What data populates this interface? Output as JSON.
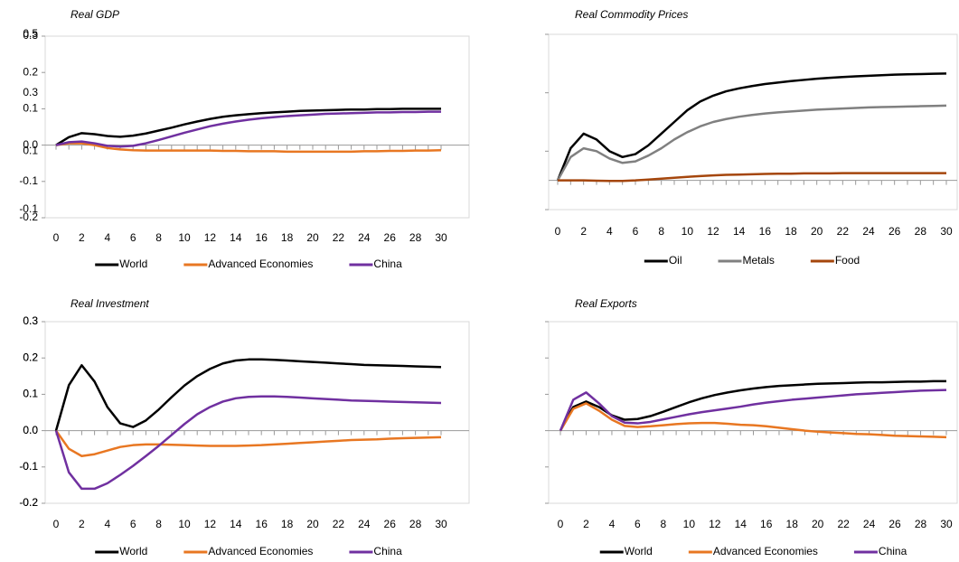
{
  "chart_data": [
    {
      "type": "line",
      "title": "Real GDP",
      "x": [
        0,
        1,
        2,
        3,
        4,
        5,
        6,
        7,
        8,
        9,
        10,
        11,
        12,
        13,
        14,
        15,
        16,
        17,
        18,
        19,
        20,
        21,
        22,
        23,
        24,
        25,
        26,
        27,
        28,
        29,
        30
      ],
      "xlim": [
        0,
        30
      ],
      "xticks": [
        0,
        2,
        4,
        6,
        8,
        10,
        12,
        14,
        16,
        18,
        20,
        22,
        24,
        26,
        28,
        30
      ],
      "ylim": [
        -0.2,
        0.3
      ],
      "yticks": [
        -0.2,
        -0.1,
        {
          "value": 0,
          "label": "0.0"
        },
        0.1,
        0.2,
        0.3
      ],
      "series": [
        {
          "name": "World",
          "color": "#000000",
          "values": [
            0,
            0.022,
            0.033,
            0.03,
            0.025,
            0.023,
            0.026,
            0.032,
            0.04,
            0.048,
            0.057,
            0.065,
            0.072,
            0.078,
            0.082,
            0.085,
            0.088,
            0.09,
            0.092,
            0.094,
            0.095,
            0.096,
            0.097,
            0.098,
            0.098,
            0.099,
            0.099,
            0.1,
            0.1,
            0.1,
            0.1
          ]
        },
        {
          "name": "Advanced Economies",
          "color": "#e87722",
          "values": [
            0,
            0.005,
            0.005,
            0,
            -0.008,
            -0.012,
            -0.014,
            -0.015,
            -0.015,
            -0.015,
            -0.015,
            -0.015,
            -0.015,
            -0.016,
            -0.016,
            -0.017,
            -0.017,
            -0.017,
            -0.018,
            -0.018,
            -0.018,
            -0.018,
            -0.018,
            -0.018,
            -0.017,
            -0.017,
            -0.016,
            -0.016,
            -0.015,
            -0.015,
            -0.014
          ]
        },
        {
          "name": "China",
          "color": "#7030a0",
          "values": [
            0,
            0.008,
            0.01,
            0.005,
            -0.002,
            -0.004,
            -0.002,
            0.005,
            0.014,
            0.024,
            0.034,
            0.043,
            0.052,
            0.059,
            0.065,
            0.07,
            0.074,
            0.077,
            0.08,
            0.082,
            0.084,
            0.086,
            0.087,
            0.088,
            0.089,
            0.09,
            0.09,
            0.091,
            0.091,
            0.092,
            0.092
          ]
        }
      ]
    },
    {
      "type": "line",
      "title": "Real Commodity Prices",
      "x": [
        0,
        1,
        2,
        3,
        4,
        5,
        6,
        7,
        8,
        9,
        10,
        11,
        12,
        13,
        14,
        15,
        16,
        17,
        18,
        19,
        20,
        21,
        22,
        23,
        24,
        25,
        26,
        27,
        28,
        29,
        30
      ],
      "xlim": [
        0,
        30
      ],
      "xticks": [
        0,
        2,
        4,
        6,
        8,
        10,
        12,
        14,
        16,
        18,
        20,
        22,
        24,
        26,
        28,
        30
      ],
      "ylim": [
        -0.1,
        0.5
      ],
      "yticks": [
        -0.1,
        0.1,
        0.3,
        0.5
      ],
      "series": [
        {
          "name": "Oil",
          "color": "#000000",
          "values": [
            0,
            0.11,
            0.16,
            0.14,
            0.1,
            0.08,
            0.09,
            0.12,
            0.16,
            0.2,
            0.24,
            0.27,
            0.29,
            0.305,
            0.315,
            0.323,
            0.33,
            0.335,
            0.34,
            0.344,
            0.348,
            0.351,
            0.354,
            0.356,
            0.358,
            0.36,
            0.362,
            0.363,
            0.364,
            0.365,
            0.366
          ]
        },
        {
          "name": "Metals",
          "color": "#808080",
          "values": [
            0,
            0.08,
            0.11,
            0.1,
            0.075,
            0.06,
            0.065,
            0.085,
            0.11,
            0.14,
            0.165,
            0.185,
            0.2,
            0.21,
            0.218,
            0.224,
            0.229,
            0.233,
            0.236,
            0.239,
            0.242,
            0.244,
            0.246,
            0.248,
            0.25,
            0.251,
            0.252,
            0.253,
            0.254,
            0.255,
            0.256
          ]
        },
        {
          "name": "Food",
          "color": "#a5460c",
          "values": [
            0,
            0,
            0,
            -0.001,
            -0.002,
            -0.002,
            0,
            0.003,
            0.006,
            0.009,
            0.012,
            0.015,
            0.017,
            0.019,
            0.02,
            0.021,
            0.022,
            0.023,
            0.023,
            0.024,
            0.024,
            0.024,
            0.025,
            0.025,
            0.025,
            0.025,
            0.025,
            0.025,
            0.025,
            0.025,
            0.025
          ]
        }
      ]
    },
    {
      "type": "line",
      "title": "Real Investment",
      "x": [
        0,
        1,
        2,
        3,
        4,
        5,
        6,
        7,
        8,
        9,
        10,
        11,
        12,
        13,
        14,
        15,
        16,
        17,
        18,
        19,
        20,
        21,
        22,
        23,
        24,
        25,
        26,
        27,
        28,
        29,
        30
      ],
      "xlim": [
        0,
        30
      ],
      "xticks": [
        0,
        2,
        4,
        6,
        8,
        10,
        12,
        14,
        16,
        18,
        20,
        22,
        24,
        26,
        28,
        30
      ],
      "ylim": [
        -0.2,
        0.3
      ],
      "yticks": [
        -0.2,
        -0.1,
        {
          "value": 0,
          "label": "0.0"
        },
        0.1,
        0.2,
        0.3
      ],
      "series": [
        {
          "name": "World",
          "color": "#000000",
          "values": [
            0,
            0.125,
            0.18,
            0.135,
            0.065,
            0.02,
            0.01,
            0.028,
            0.058,
            0.092,
            0.124,
            0.15,
            0.17,
            0.185,
            0.193,
            0.196,
            0.196,
            0.195,
            0.193,
            0.191,
            0.189,
            0.187,
            0.185,
            0.183,
            0.181,
            0.18,
            0.179,
            0.178,
            0.177,
            0.176,
            0.175
          ]
        },
        {
          "name": "Advanced Economies",
          "color": "#e87722",
          "values": [
            0,
            -0.05,
            -0.07,
            -0.065,
            -0.055,
            -0.045,
            -0.04,
            -0.038,
            -0.038,
            -0.039,
            -0.04,
            -0.041,
            -0.042,
            -0.042,
            -0.042,
            -0.041,
            -0.04,
            -0.038,
            -0.036,
            -0.034,
            -0.032,
            -0.03,
            -0.028,
            -0.026,
            -0.025,
            -0.024,
            -0.022,
            -0.021,
            -0.02,
            -0.019,
            -0.018
          ]
        },
        {
          "name": "China",
          "color": "#7030a0",
          "values": [
            0,
            -0.115,
            -0.16,
            -0.16,
            -0.145,
            -0.122,
            -0.097,
            -0.07,
            -0.042,
            -0.012,
            0.018,
            0.045,
            0.065,
            0.08,
            0.089,
            0.093,
            0.094,
            0.094,
            0.093,
            0.091,
            0.089,
            0.087,
            0.085,
            0.083,
            0.082,
            0.081,
            0.08,
            0.079,
            0.078,
            0.077,
            0.076
          ]
        }
      ]
    },
    {
      "type": "line",
      "title": "Real Exports",
      "x": [
        0,
        1,
        2,
        3,
        4,
        5,
        6,
        7,
        8,
        9,
        10,
        11,
        12,
        13,
        14,
        15,
        16,
        17,
        18,
        19,
        20,
        21,
        22,
        23,
        24,
        25,
        26,
        27,
        28,
        29,
        30
      ],
      "xlim": [
        0,
        30
      ],
      "xticks": [
        0,
        2,
        4,
        6,
        8,
        10,
        12,
        14,
        16,
        18,
        20,
        22,
        24,
        26,
        28,
        30
      ],
      "ylim": [
        -0.2,
        0.3
      ],
      "yticks": [
        -0.2,
        -0.1,
        {
          "value": 0,
          "label": "0.0"
        },
        0.1,
        0.2,
        0.3
      ],
      "series": [
        {
          "name": "World",
          "color": "#000000",
          "values": [
            0,
            0.065,
            0.08,
            0.065,
            0.042,
            0.03,
            0.032,
            0.04,
            0.052,
            0.065,
            0.078,
            0.089,
            0.098,
            0.105,
            0.111,
            0.116,
            0.12,
            0.123,
            0.125,
            0.127,
            0.129,
            0.13,
            0.131,
            0.132,
            0.133,
            0.133,
            0.134,
            0.135,
            0.135,
            0.136,
            0.136
          ]
        },
        {
          "name": "Advanced Economies",
          "color": "#e87722",
          "values": [
            0,
            0.06,
            0.075,
            0.055,
            0.03,
            0.013,
            0.01,
            0.012,
            0.015,
            0.018,
            0.02,
            0.021,
            0.021,
            0.019,
            0.016,
            0.015,
            0.012,
            0.008,
            0.004,
            0,
            -0.003,
            -0.005,
            -0.007,
            -0.009,
            -0.01,
            -0.012,
            -0.014,
            -0.015,
            -0.016,
            -0.017,
            -0.018
          ]
        },
        {
          "name": "China",
          "color": "#7030a0",
          "values": [
            0,
            0.085,
            0.105,
            0.075,
            0.04,
            0.022,
            0.02,
            0.024,
            0.031,
            0.038,
            0.045,
            0.051,
            0.056,
            0.061,
            0.066,
            0.072,
            0.077,
            0.081,
            0.085,
            0.088,
            0.091,
            0.094,
            0.097,
            0.1,
            0.102,
            0.104,
            0.106,
            0.108,
            0.11,
            0.111,
            0.112
          ]
        }
      ]
    }
  ]
}
